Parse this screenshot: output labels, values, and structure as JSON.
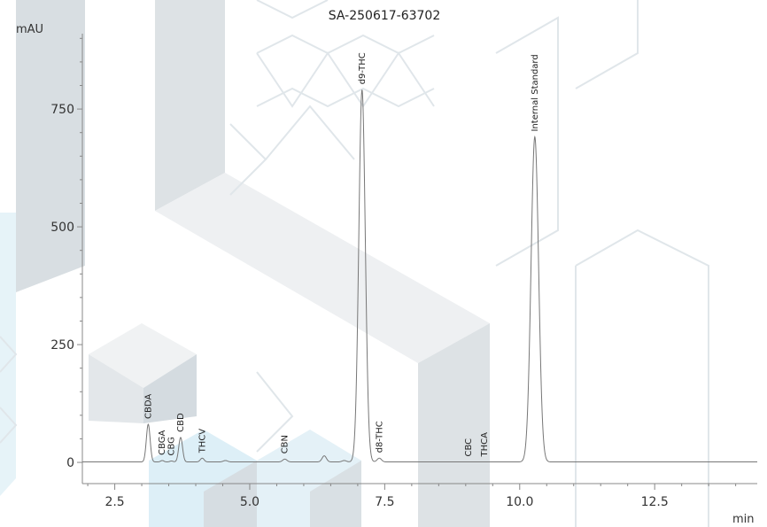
{
  "chart_data": {
    "type": "line",
    "title": "SA-250617-63702",
    "xlabel": "min",
    "ylabel": "mAU",
    "xlim": [
      1.9,
      14.4
    ],
    "ylim": [
      -45,
      910
    ],
    "x_ticks": [
      2.5,
      5.0,
      7.5,
      10.0,
      12.5
    ],
    "x_tick_labels": [
      "2.5",
      "5.0",
      "7.5",
      "10.0",
      "12.5"
    ],
    "y_ticks": [
      0,
      250,
      500,
      750
    ],
    "y_tick_labels": [
      "0",
      "250",
      "500",
      "750"
    ],
    "grid": false,
    "series": [
      {
        "name": "",
        "baseline": 1,
        "peaks": [
          {
            "label": "CBDA",
            "rt": 3.12,
            "height": 80,
            "width": 0.035
          },
          {
            "label": "CBGA",
            "rt": 3.38,
            "height": 3,
            "width": 0.03
          },
          {
            "label": "CBG",
            "rt": 3.55,
            "height": 2,
            "width": 0.03
          },
          {
            "label": "CBD",
            "rt": 3.72,
            "height": 52,
            "width": 0.035
          },
          {
            "label": "THCV",
            "rt": 4.12,
            "height": 8,
            "width": 0.035
          },
          {
            "label": "",
            "rt": 4.55,
            "height": 3,
            "width": 0.04
          },
          {
            "label": "CBN",
            "rt": 5.65,
            "height": 6,
            "width": 0.04
          },
          {
            "label": "",
            "rt": 6.38,
            "height": 13,
            "width": 0.04
          },
          {
            "label": "",
            "rt": 6.75,
            "height": 3,
            "width": 0.04
          },
          {
            "label": "d9-THC",
            "rt": 7.08,
            "height": 790,
            "width": 0.06
          },
          {
            "label": "d8-THC",
            "rt": 7.4,
            "height": 8,
            "width": 0.04
          },
          {
            "label": "CBC",
            "rt": 9.05,
            "height": 0,
            "width": 0.03
          },
          {
            "label": "THCA",
            "rt": 9.35,
            "height": 0,
            "width": 0.03
          },
          {
            "label": "Internal Standard",
            "rt": 10.28,
            "height": 690,
            "width": 0.07
          }
        ]
      }
    ]
  }
}
